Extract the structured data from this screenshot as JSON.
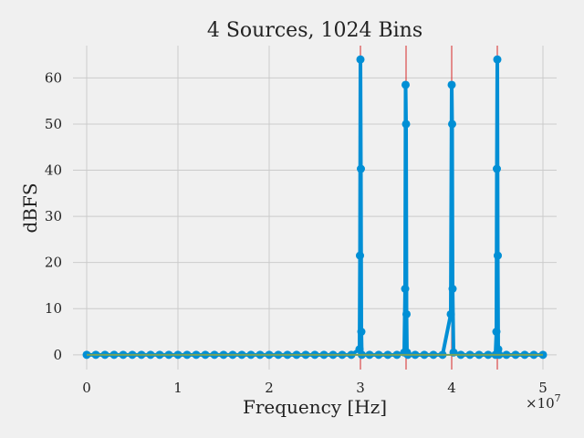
{
  "chart_data": {
    "type": "line",
    "title": "4 Sources, 1024 Bins",
    "xlabel": "Frequency [Hz]",
    "ylabel": "dBFS",
    "x_exponent_label": "×10^7",
    "x_scale_factor": 10000000,
    "xlim": [
      -1500000,
      51500000
    ],
    "ylim": [
      -3.2,
      67
    ],
    "x_ticks": [
      0,
      10000000,
      20000000,
      30000000,
      40000000,
      50000000
    ],
    "x_tick_labels": [
      "0",
      "1",
      "2",
      "3",
      "4",
      "5"
    ],
    "y_ticks": [
      0,
      10,
      20,
      30,
      40,
      50,
      60
    ],
    "y_tick_labels": [
      "0",
      "10",
      "20",
      "30",
      "40",
      "50",
      "60"
    ],
    "grid": true,
    "colors": {
      "series": "#008fd5",
      "baseline": "#77a35a",
      "markers": "#d62728",
      "grid": "#cbcbcb",
      "background": "#f0f0f0"
    },
    "source_frequencies": [
      30000000,
      35000000,
      40000000,
      45000000
    ],
    "series": [
      {
        "x": [
          0,
          1000000,
          2000000,
          3000000,
          4000000,
          5000000,
          6000000,
          7000000,
          8000000,
          9000000,
          10000000,
          11000000,
          12000000,
          13000000,
          14000000,
          15000000,
          16000000,
          17000000,
          18000000,
          19000000,
          20000000,
          21000000,
          22000000,
          23000000,
          24000000,
          25000000,
          26000000,
          27000000,
          28000000,
          29000000,
          29900000,
          29950000,
          30000000,
          30050000,
          30100000,
          30150000,
          31000000,
          32000000,
          33000000,
          34000000,
          34800000,
          34900000,
          34950000,
          35000000,
          35050000,
          35100000,
          35200000,
          36000000,
          37000000,
          38000000,
          39000000,
          39900000,
          40000000,
          40050000,
          40100000,
          40200000,
          41000000,
          42000000,
          43000000,
          44000000,
          44800000,
          44900000,
          44950000,
          45000000,
          45050000,
          45100000,
          45200000,
          46000000,
          47000000,
          48000000,
          49000000,
          50000000
        ],
        "y": [
          0,
          0,
          0,
          0,
          0,
          0,
          0,
          0,
          0,
          0,
          0,
          0,
          0,
          0,
          0,
          0,
          0,
          0,
          0,
          0,
          0,
          0,
          0,
          0,
          0,
          0,
          0,
          0,
          0,
          0,
          1.2,
          21.5,
          64,
          40.3,
          5,
          0,
          0,
          0,
          0,
          0,
          0.5,
          14.3,
          58.5,
          50,
          8.8,
          0.5,
          0,
          0,
          0,
          0,
          0,
          8.8,
          58.5,
          50,
          14.3,
          0.5,
          0,
          0,
          0,
          0,
          0,
          5,
          40.3,
          64,
          21.5,
          1.2,
          0,
          0,
          0,
          0,
          0,
          0
        ]
      }
    ]
  }
}
